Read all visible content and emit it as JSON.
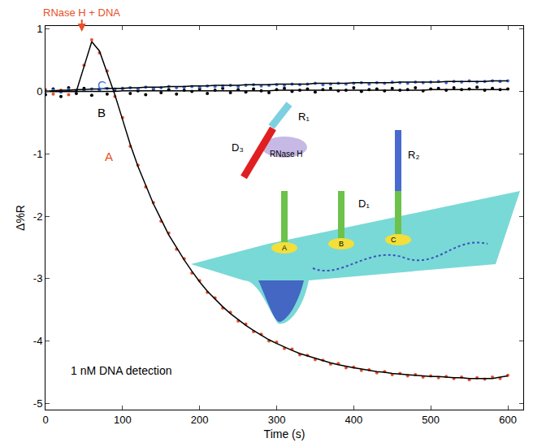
{
  "chart_data": {
    "type": "scatter",
    "x_label": "Time (s)",
    "y_label": "Δ%R",
    "annotations": [
      "RNase H + DNA",
      "1 nM DNA detection"
    ],
    "x": [
      0,
      10,
      20,
      30,
      40,
      50,
      60,
      70,
      80,
      90,
      100,
      110,
      120,
      130,
      140,
      150,
      160,
      170,
      180,
      190,
      200,
      210,
      220,
      230,
      240,
      250,
      260,
      270,
      280,
      290,
      300,
      310,
      320,
      330,
      340,
      350,
      360,
      370,
      380,
      390,
      400,
      410,
      420,
      430,
      440,
      450,
      460,
      470,
      480,
      490,
      500,
      510,
      520,
      530,
      540,
      550,
      560,
      570,
      580,
      590,
      600
    ],
    "xlim": [
      0,
      620
    ],
    "xticks": [
      0,
      100,
      200,
      300,
      400,
      500,
      600
    ],
    "ylim": [
      -5.1,
      1.05
    ],
    "yticks": [
      -5,
      -4,
      -3,
      -2,
      -1,
      0,
      1
    ],
    "grid": false,
    "series": [
      {
        "name": "A",
        "type": "scatter",
        "marker": "circle",
        "color": "#e8502a",
        "values": [
          0.03,
          -0.04,
          0.02,
          -0.05,
          0.01,
          0.42,
          0.83,
          0.62,
          0.33,
          -0.08,
          -0.42,
          -0.88,
          -1.18,
          -1.53,
          -1.78,
          -2.08,
          -2.27,
          -2.53,
          -2.68,
          -2.91,
          -3.03,
          -3.22,
          -3.31,
          -3.47,
          -3.54,
          -3.68,
          -3.73,
          -3.85,
          -3.89,
          -4.0,
          -4.02,
          -4.12,
          -4.13,
          -4.22,
          -4.23,
          -4.3,
          -4.31,
          -4.37,
          -4.36,
          -4.43,
          -4.42,
          -4.47,
          -4.46,
          -4.51,
          -4.49,
          -4.54,
          -4.52,
          -4.56,
          -4.54,
          -4.58,
          -4.56,
          -4.59,
          -4.57,
          -4.6,
          -4.58,
          -4.62,
          -4.59,
          -4.61,
          -4.58,
          -4.6,
          -4.55
        ]
      },
      {
        "name": "B",
        "type": "scatter",
        "marker": "circle",
        "color": "#000000",
        "values": [
          -0.05,
          0.04,
          -0.08,
          0.06,
          -0.03,
          0.05,
          -0.06,
          0.03,
          -0.04,
          0.02,
          0.05,
          -0.03,
          0.01,
          -0.05,
          0.04,
          -0.02,
          0.03,
          -0.04,
          0.02,
          0.0,
          0.04,
          -0.03,
          0.02,
          0.05,
          -0.02,
          0.03,
          -0.01,
          0.04,
          0.01,
          -0.02,
          0.03,
          0.05,
          0.0,
          0.02,
          0.04,
          -0.01,
          0.03,
          0.05,
          0.01,
          0.02,
          0.06,
          0.0,
          0.03,
          0.04,
          0.01,
          0.05,
          0.02,
          0.03,
          0.06,
          0.01,
          0.04,
          0.05,
          0.02,
          0.06,
          0.03,
          0.04,
          0.07,
          0.02,
          0.05,
          0.03,
          0.04
        ]
      },
      {
        "name": "C",
        "type": "scatter",
        "marker": "circle",
        "color": "#3a6fd8",
        "values": [
          0.0,
          0.02,
          -0.01,
          0.03,
          0.01,
          0.02,
          0.04,
          0.03,
          0.05,
          0.04,
          0.05,
          0.06,
          0.04,
          0.07,
          0.05,
          0.06,
          0.08,
          0.06,
          0.07,
          0.08,
          0.07,
          0.09,
          0.08,
          0.09,
          0.1,
          0.08,
          0.1,
          0.11,
          0.09,
          0.1,
          0.11,
          0.1,
          0.12,
          0.11,
          0.12,
          0.13,
          0.11,
          0.12,
          0.13,
          0.12,
          0.13,
          0.14,
          0.12,
          0.14,
          0.13,
          0.15,
          0.14,
          0.13,
          0.15,
          0.14,
          0.15,
          0.16,
          0.14,
          0.16,
          0.15,
          0.17,
          0.15,
          0.16,
          0.17,
          0.16,
          0.17
        ]
      },
      {
        "type": "line",
        "line_style": "solid",
        "color": "#000000",
        "values": [
          0,
          0,
          0,
          0,
          0,
          0.4,
          0.8,
          0.65,
          0.3,
          -0.05,
          -0.45,
          -0.85,
          -1.2,
          -1.5,
          -1.8,
          -2.05,
          -2.3,
          -2.5,
          -2.7,
          -2.88,
          -3.05,
          -3.2,
          -3.33,
          -3.45,
          -3.56,
          -3.66,
          -3.75,
          -3.83,
          -3.91,
          -3.98,
          -4.04,
          -4.1,
          -4.15,
          -4.2,
          -4.24,
          -4.28,
          -4.32,
          -4.35,
          -4.38,
          -4.41,
          -4.43,
          -4.45,
          -4.47,
          -4.49,
          -4.5,
          -4.52,
          -4.53,
          -4.54,
          -4.55,
          -4.56,
          -4.57,
          -4.57,
          -4.58,
          -4.59,
          -4.59,
          -4.6,
          -4.6,
          -4.6,
          -4.6,
          -4.58,
          -4.56
        ]
      },
      {
        "type": "line",
        "line_style": "solid",
        "color": "#000000",
        "values": [
          0,
          0,
          0,
          0,
          0,
          0,
          0,
          0,
          0,
          0,
          0.01,
          0.01,
          0.01,
          0.01,
          0.01,
          0.01,
          0.01,
          0.01,
          0.01,
          0.01,
          0.01,
          0.01,
          0.01,
          0.01,
          0.01,
          0.01,
          0.01,
          0.01,
          0.01,
          0.01,
          0.02,
          0.02,
          0.02,
          0.02,
          0.02,
          0.02,
          0.02,
          0.02,
          0.02,
          0.02,
          0.02,
          0.02,
          0.02,
          0.02,
          0.02,
          0.02,
          0.02,
          0.02,
          0.02,
          0.02,
          0.03,
          0.03,
          0.03,
          0.03,
          0.03,
          0.03,
          0.03,
          0.03,
          0.03,
          0.03,
          0.03
        ]
      },
      {
        "type": "line",
        "line_style": "solid",
        "color": "#000000",
        "values": [
          0.0,
          0.01,
          0.02,
          0.02,
          0.03,
          0.03,
          0.04,
          0.04,
          0.05,
          0.05,
          0.05,
          0.06,
          0.06,
          0.07,
          0.07,
          0.07,
          0.08,
          0.08,
          0.08,
          0.09,
          0.09,
          0.09,
          0.1,
          0.1,
          0.1,
          0.1,
          0.11,
          0.11,
          0.11,
          0.11,
          0.12,
          0.12,
          0.12,
          0.12,
          0.12,
          0.13,
          0.13,
          0.13,
          0.13,
          0.13,
          0.14,
          0.14,
          0.14,
          0.14,
          0.14,
          0.14,
          0.15,
          0.15,
          0.15,
          0.15,
          0.15,
          0.15,
          0.16,
          0.16,
          0.16,
          0.16,
          0.16,
          0.16,
          0.17,
          0.17,
          0.17
        ]
      }
    ],
    "diagram": {
      "labels": [
        "D₃",
        "R₁",
        "RNase H",
        "D₁",
        "R₂",
        "A",
        "B",
        "C"
      ]
    }
  }
}
